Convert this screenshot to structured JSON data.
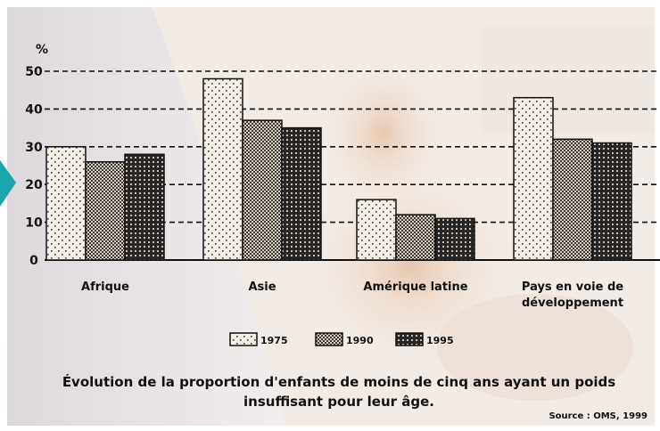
{
  "chart_data": {
    "type": "bar",
    "ylabel": "%",
    "ylim": [
      0,
      50
    ],
    "yticks": [
      0,
      10,
      20,
      30,
      40,
      50
    ],
    "categories": [
      "Afrique",
      "Asie",
      "Amérique latine",
      "Pays en voie de développement"
    ],
    "series": [
      {
        "name": "1975",
        "values": [
          30,
          48,
          16,
          43
        ]
      },
      {
        "name": "1990",
        "values": [
          26,
          37,
          12,
          32
        ]
      },
      {
        "name": "1995",
        "values": [
          28,
          35,
          11,
          31
        ]
      }
    ],
    "grid": "dashed horizontal",
    "legend": "bottom-center",
    "title": "Évolution de la proportion d'enfants de moins de cinq ans ayant un poids insuffisant pour leur âge.",
    "source": "Source : OMS, 1999"
  },
  "colors": {
    "bar_fill": "#f4ece4",
    "bar_fill_1975": "#f6efe8",
    "bar_fill_1990": "#d9cbbd",
    "bar_fill_1995": "#cdbdae",
    "accent_arrow": "#1aa6ad"
  }
}
